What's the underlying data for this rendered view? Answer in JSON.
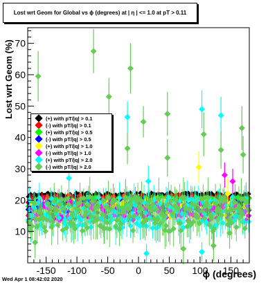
{
  "title": "Lost wrt Geom for Global vs ϕ (degrees) at | η | <= 1.0 at pT > 0.11",
  "timestamp": "Wed Apr  1 08:42:02 2020",
  "colors": {
    "black": "#000000",
    "red": "#ff0000",
    "green": "#00ff00",
    "blue": "#0000ff",
    "yellow": "#ffff00",
    "magenta": "#ff00ff",
    "cyan": "#00ffff",
    "lightgreen": "#66cc55"
  },
  "chart_data": {
    "type": "scatter",
    "xlabel": "ϕ (degrees)",
    "ylabel": "Lost wrt Geom (%)",
    "xlim": [
      -180,
      180
    ],
    "ylim": [
      0,
      75
    ],
    "xticks": [
      -150,
      -100,
      -50,
      0,
      50,
      100,
      150
    ],
    "yticks": [
      10,
      20,
      30,
      40,
      50,
      60,
      70
    ],
    "legend_position": "left",
    "series": [
      {
        "name": "(+) with pT/|q| > 0.1",
        "color": "black",
        "center": 21.5,
        "spread": 0.8,
        "err": 0.6,
        "seed": 11
      },
      {
        "name": "(-) with pT/|q| > 0.1",
        "color": "red",
        "center": 20.0,
        "spread": 1.5,
        "err": 1.0,
        "seed": 23
      },
      {
        "name": "(+) with pT/|q| > 0.5",
        "color": "green",
        "center": 19.0,
        "spread": 2.0,
        "err": 1.3,
        "seed": 37
      },
      {
        "name": "(-) with pT/|q| > 0.5",
        "color": "blue",
        "center": 18.0,
        "spread": 2.0,
        "err": 1.3,
        "seed": 41
      },
      {
        "name": "(+) with pT/|q| > 1.0",
        "color": "yellow",
        "center": 17.0,
        "spread": 3.0,
        "err": 2.0,
        "seed": 53
      },
      {
        "name": "(-) with pT/|q| > 1.0",
        "color": "magenta",
        "center": 16.5,
        "spread": 3.0,
        "err": 2.0,
        "seed": 67
      },
      {
        "name": "(+) with pT/|q| > 2.0",
        "color": "cyan",
        "center": 16.0,
        "spread": 5.0,
        "err": 4.0,
        "seed": 79
      },
      {
        "name": "(-) with pT/|q| > 2.0",
        "color": "lightgreen",
        "center": 15.5,
        "spread": 5.5,
        "err": 4.5,
        "seed": 97
      }
    ],
    "outliers": [
      {
        "x": -163,
        "y": 59.5,
        "err": 8,
        "color": "lightgreen"
      },
      {
        "x": -73,
        "y": 67.5,
        "err": 7,
        "color": "lightgreen"
      },
      {
        "x": -13,
        "y": 62.0,
        "err": 8,
        "color": "lightgreen"
      },
      {
        "x": -48,
        "y": 53.0,
        "err": 6,
        "color": "lightgreen"
      },
      {
        "x": -18,
        "y": 46.5,
        "err": 5,
        "color": "cyan"
      },
      {
        "x": 47,
        "y": 47.5,
        "err": 7,
        "color": "lightgreen"
      },
      {
        "x": 8,
        "y": 45.0,
        "err": 5,
        "color": "lightgreen"
      },
      {
        "x": 103,
        "y": 49.0,
        "err": 6,
        "color": "cyan"
      },
      {
        "x": 106,
        "y": 41.0,
        "err": 7,
        "color": "lightgreen"
      },
      {
        "x": 134,
        "y": 47.0,
        "err": 6,
        "color": "cyan"
      },
      {
        "x": 168,
        "y": 43.0,
        "err": 7,
        "color": "lightgreen"
      },
      {
        "x": 170,
        "y": 34.5,
        "err": 6,
        "color": "lightgreen"
      },
      {
        "x": 134,
        "y": 36.0,
        "err": 6,
        "color": "lightgreen"
      },
      {
        "x": 47,
        "y": 33.5,
        "err": 6,
        "color": "lightgreen"
      },
      {
        "x": -18,
        "y": 36.5,
        "err": 5,
        "color": "lightgreen"
      },
      {
        "x": 98,
        "y": 30.5,
        "err": 5,
        "color": "yellow"
      },
      {
        "x": 140,
        "y": 28.0,
        "err": 4,
        "color": "magenta"
      },
      {
        "x": 153,
        "y": 26.0,
        "err": 4,
        "color": "magenta"
      },
      {
        "x": 16,
        "y": 26.0,
        "err": 5,
        "color": "cyan"
      },
      {
        "x": -113,
        "y": 27.0,
        "err": 5,
        "color": "cyan"
      },
      {
        "x": 145,
        "y": 22.0,
        "err": 5,
        "color": "yellow"
      },
      {
        "x": 13,
        "y": 3.0,
        "err": 3,
        "color": "cyan"
      },
      {
        "x": 103,
        "y": 3.5,
        "err": 3,
        "color": "cyan"
      },
      {
        "x": -168,
        "y": 6.5,
        "err": 5,
        "color": "lightgreen"
      },
      {
        "x": 122,
        "y": 5.5,
        "err": 5,
        "color": "lightgreen"
      },
      {
        "x": 73,
        "y": 4.5,
        "err": 5,
        "color": "lightgreen"
      },
      {
        "x": 148,
        "y": 9.5,
        "err": 5,
        "color": "lightgreen"
      },
      {
        "x": -56,
        "y": 11.0,
        "err": 5,
        "color": "lightgreen"
      }
    ]
  }
}
